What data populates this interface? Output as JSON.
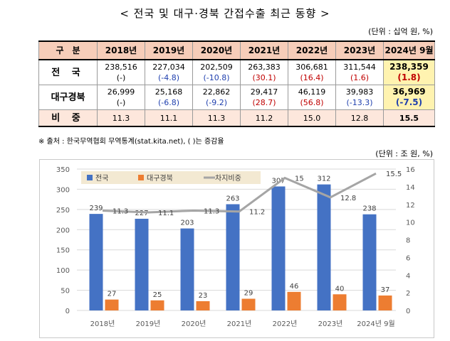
{
  "title": "< 전국 및 대구·경북 간접수출 최근 동향 >",
  "table_unit": "(단위 : 십억 원, %)",
  "table": {
    "header": [
      "구　분",
      "2018년",
      "2019년",
      "2020년",
      "2021년",
      "2022년",
      "2023년",
      "2024년 9월"
    ],
    "rows": [
      {
        "label": "전 국",
        "cells": [
          {
            "value": "238,516",
            "change": "(-)",
            "tone": ""
          },
          {
            "value": "227,034",
            "change": "(-4.8)",
            "tone": "neg"
          },
          {
            "value": "202,509",
            "change": "(-10.8)",
            "tone": "neg"
          },
          {
            "value": "263,383",
            "change": "(30.1)",
            "tone": "pos"
          },
          {
            "value": "306,681",
            "change": "(16.4)",
            "tone": "pos"
          },
          {
            "value": "311,544",
            "change": "(1.6)",
            "tone": "pos"
          },
          {
            "value": "238,359",
            "change": "(1.8)",
            "tone": "pos"
          }
        ]
      },
      {
        "label": "대구경북",
        "cells": [
          {
            "value": "26,999",
            "change": "(-)",
            "tone": ""
          },
          {
            "value": "25,168",
            "change": "(-6.8)",
            "tone": "neg"
          },
          {
            "value": "22,862",
            "change": "(-9.2)",
            "tone": "neg"
          },
          {
            "value": "29,417",
            "change": "(28.7)",
            "tone": "pos"
          },
          {
            "value": "46,119",
            "change": "(56.8)",
            "tone": "pos"
          },
          {
            "value": "39,983",
            "change": "(-13.3)",
            "tone": "neg"
          },
          {
            "value": "36,969",
            "change": "(-7.5)",
            "tone": "neg"
          }
        ]
      }
    ],
    "share_row": {
      "label": "비 중",
      "values": [
        "11.3",
        "11.1",
        "11.3",
        "11.2",
        "15.0",
        "12.8",
        "15.5"
      ]
    }
  },
  "note": "※ 출처 : 한국무역협회 무역통계(stat.kita.net), ( )는 증감율",
  "chart_unit": "(단위 : 조 원, %)",
  "colors": {
    "national": "#4472c4",
    "daegu": "#ed7d31",
    "share": "#a5a5a5",
    "legend_bg": "#f3e9d2",
    "grid": "#d9d9d9",
    "axis_text": "#595959"
  },
  "chart_data": {
    "type": "bar",
    "categories": [
      "2018년",
      "2019년",
      "2020년",
      "2021년",
      "2022년",
      "2023년",
      "2024년 9월"
    ],
    "series": [
      {
        "name": "전국",
        "type": "bar",
        "axis": "left",
        "values": [
          239,
          227,
          203,
          263,
          307,
          312,
          238
        ]
      },
      {
        "name": "대구경북",
        "type": "bar",
        "axis": "left",
        "values": [
          27,
          25,
          23,
          29,
          46,
          40,
          37
        ]
      },
      {
        "name": "차지비중",
        "type": "line",
        "axis": "right",
        "values": [
          11.3,
          11.1,
          11.3,
          11.2,
          15,
          12.8,
          15.5
        ]
      }
    ],
    "ylim": [
      0,
      350
    ],
    "yticks": [
      0,
      50,
      100,
      150,
      200,
      250,
      300,
      350
    ],
    "y2lim": [
      0,
      16
    ],
    "y2ticks": [
      0,
      2,
      4,
      6,
      8,
      10,
      12,
      14,
      16
    ],
    "grid": true,
    "legend_position": "top-left"
  }
}
